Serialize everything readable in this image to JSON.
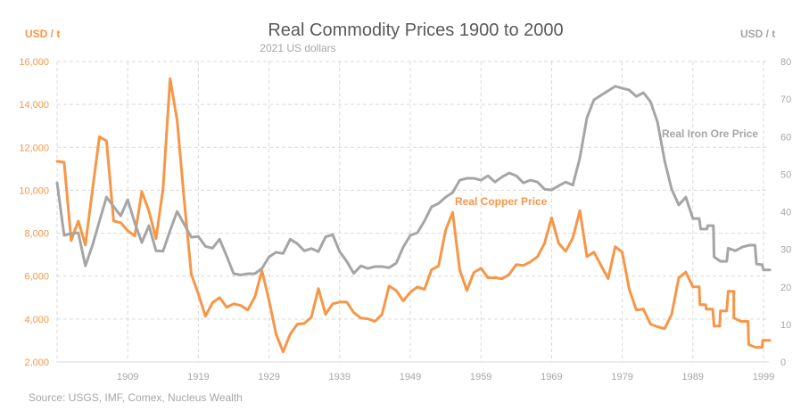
{
  "chart_data": {
    "type": "line",
    "title": "Real Commodity Prices 1900 to 2000",
    "subtitle": "2021 US dollars",
    "source": "Source: USGS, IMF, Comex, Nucleus Wealth",
    "xlabel": "",
    "x_ticks": [
      "1909",
      "1919",
      "1929",
      "1939",
      "1949",
      "1959",
      "1969",
      "1979",
      "1989",
      "1999"
    ],
    "x_range": [
      1899,
      2000
    ],
    "y_left": {
      "label": "USD / t",
      "range": [
        2000,
        16000
      ],
      "ticks": [
        "2,000",
        "4,000",
        "6,000",
        "8,000",
        "10,000",
        "12,000",
        "14,000",
        "16,000"
      ],
      "tick_values": [
        2000,
        4000,
        6000,
        8000,
        10000,
        12000,
        14000,
        16000
      ],
      "color": "#F79646"
    },
    "y_right": {
      "label": "USD / t",
      "range": [
        0,
        80
      ],
      "ticks": [
        "0",
        "10",
        "20",
        "30",
        "40",
        "50",
        "60",
        "70",
        "80"
      ],
      "tick_values": [
        0,
        10,
        20,
        30,
        40,
        50,
        60,
        70,
        80
      ],
      "color": "#A6A6A6"
    },
    "grid": true,
    "series": [
      {
        "name": "Real Copper Price",
        "axis": "left",
        "color": "#F79646",
        "label": "Real Copper Price",
        "points": [
          [
            1899,
            11350
          ],
          [
            1900,
            11300
          ],
          [
            1901,
            7660
          ],
          [
            1902,
            8570
          ],
          [
            1903,
            7450
          ],
          [
            1904,
            10000
          ],
          [
            1905,
            12500
          ],
          [
            1906,
            12300
          ],
          [
            1907,
            8570
          ],
          [
            1908,
            8490
          ],
          [
            1909,
            8120
          ],
          [
            1910,
            7870
          ],
          [
            1911,
            9940
          ],
          [
            1912,
            9030
          ],
          [
            1913,
            7740
          ],
          [
            1914,
            10070
          ],
          [
            1915,
            15200
          ],
          [
            1916,
            13260
          ],
          [
            1917,
            9500
          ],
          [
            1918,
            6080
          ],
          [
            1919,
            5170
          ],
          [
            1920,
            4130
          ],
          [
            1921,
            4760
          ],
          [
            1922,
            5000
          ],
          [
            1923,
            4550
          ],
          [
            1924,
            4710
          ],
          [
            1925,
            4630
          ],
          [
            1926,
            4420
          ],
          [
            1927,
            5040
          ],
          [
            1928,
            6250
          ],
          [
            1929,
            4880
          ],
          [
            1930,
            3300
          ],
          [
            1931,
            2470
          ],
          [
            1932,
            3300
          ],
          [
            1933,
            3760
          ],
          [
            1934,
            3800
          ],
          [
            1935,
            4090
          ],
          [
            1936,
            5420
          ],
          [
            1937,
            4220
          ],
          [
            1938,
            4710
          ],
          [
            1939,
            4790
          ],
          [
            1940,
            4790
          ],
          [
            1941,
            4300
          ],
          [
            1942,
            4050
          ],
          [
            1943,
            4010
          ],
          [
            1944,
            3890
          ],
          [
            1945,
            4220
          ],
          [
            1946,
            5540
          ],
          [
            1947,
            5330
          ],
          [
            1948,
            4840
          ],
          [
            1949,
            5250
          ],
          [
            1950,
            5500
          ],
          [
            1951,
            5380
          ],
          [
            1952,
            6290
          ],
          [
            1953,
            6480
          ],
          [
            1954,
            8140
          ],
          [
            1955,
            8970
          ],
          [
            1956,
            6290
          ],
          [
            1957,
            5330
          ],
          [
            1958,
            6170
          ],
          [
            1959,
            6370
          ],
          [
            1960,
            5920
          ],
          [
            1961,
            5920
          ],
          [
            1962,
            5880
          ],
          [
            1963,
            6080
          ],
          [
            1964,
            6540
          ],
          [
            1965,
            6500
          ],
          [
            1966,
            6660
          ],
          [
            1967,
            6910
          ],
          [
            1968,
            7530
          ],
          [
            1969,
            8720
          ],
          [
            1970,
            7530
          ],
          [
            1971,
            7160
          ],
          [
            1972,
            7780
          ],
          [
            1973,
            9050
          ],
          [
            1974,
            6910
          ],
          [
            1975,
            7120
          ],
          [
            1976,
            6500
          ],
          [
            1977,
            5880
          ],
          [
            1978,
            7370
          ],
          [
            1979,
            7120
          ],
          [
            1980,
            5380
          ],
          [
            1981,
            4420
          ],
          [
            1982,
            4460
          ],
          [
            1983,
            3760
          ],
          [
            1984,
            3640
          ],
          [
            1985,
            3550
          ],
          [
            1986,
            4220
          ],
          [
            1987,
            5920
          ],
          [
            1988,
            6190
          ],
          [
            1989,
            5500
          ],
          [
            1989.9,
            5500
          ],
          [
            1990,
            4670
          ],
          [
            1990.8,
            4670
          ],
          [
            1990.9,
            4460
          ],
          [
            1991.8,
            4460
          ],
          [
            1992,
            3670
          ],
          [
            1992.8,
            3670
          ],
          [
            1992.9,
            4380
          ],
          [
            1993.8,
            4380
          ],
          [
            1994,
            5290
          ],
          [
            1994.8,
            5290
          ],
          [
            1994.8,
            4050
          ],
          [
            1995.8,
            3890
          ],
          [
            1996.8,
            3890
          ],
          [
            1996.9,
            2810
          ],
          [
            1997.9,
            2680
          ],
          [
            1998.8,
            2680
          ],
          [
            1998.9,
            3010
          ],
          [
            1999.9,
            3010
          ]
        ]
      },
      {
        "name": "Real Iron Ore Price",
        "axis": "right",
        "color": "#A5A5A5",
        "label": "Real Iron Ore Price",
        "points": [
          [
            1899,
            47.7
          ],
          [
            1900,
            33.7
          ],
          [
            1901,
            34.2
          ],
          [
            1902,
            34.4
          ],
          [
            1903,
            25.6
          ],
          [
            1904,
            31.0
          ],
          [
            1905,
            37.5
          ],
          [
            1906,
            43.9
          ],
          [
            1907,
            41.4
          ],
          [
            1908,
            38.9
          ],
          [
            1909,
            43.2
          ],
          [
            1910,
            37.0
          ],
          [
            1911,
            31.8
          ],
          [
            1912,
            36.3
          ],
          [
            1913,
            29.6
          ],
          [
            1914,
            29.5
          ],
          [
            1915,
            35.0
          ],
          [
            1916,
            40.1
          ],
          [
            1917,
            36.6
          ],
          [
            1918,
            33.2
          ],
          [
            1919,
            33.4
          ],
          [
            1920,
            30.8
          ],
          [
            1921,
            30.3
          ],
          [
            1922,
            32.7
          ],
          [
            1923,
            28.2
          ],
          [
            1924,
            23.5
          ],
          [
            1925,
            23.2
          ],
          [
            1926,
            23.5
          ],
          [
            1927,
            23.5
          ],
          [
            1928,
            24.9
          ],
          [
            1929,
            28.0
          ],
          [
            1930,
            29.2
          ],
          [
            1931,
            28.9
          ],
          [
            1932,
            32.7
          ],
          [
            1933,
            31.5
          ],
          [
            1934,
            29.6
          ],
          [
            1935,
            30.2
          ],
          [
            1936,
            29.4
          ],
          [
            1937,
            33.3
          ],
          [
            1938,
            33.9
          ],
          [
            1939,
            29.4
          ],
          [
            1940,
            26.8
          ],
          [
            1941,
            23.6
          ],
          [
            1942,
            25.6
          ],
          [
            1943,
            24.9
          ],
          [
            1944,
            25.4
          ],
          [
            1945,
            25.4
          ],
          [
            1946,
            25.1
          ],
          [
            1947,
            26.3
          ],
          [
            1948,
            30.6
          ],
          [
            1949,
            33.7
          ],
          [
            1950,
            34.4
          ],
          [
            1951,
            37.5
          ],
          [
            1952,
            41.3
          ],
          [
            1953,
            42.2
          ],
          [
            1954,
            43.9
          ],
          [
            1955,
            45.1
          ],
          [
            1956,
            48.4
          ],
          [
            1957,
            48.9
          ],
          [
            1958,
            48.9
          ],
          [
            1959,
            48.4
          ],
          [
            1960,
            49.6
          ],
          [
            1961,
            47.9
          ],
          [
            1962,
            49.3
          ],
          [
            1963,
            50.3
          ],
          [
            1964,
            49.6
          ],
          [
            1965,
            47.7
          ],
          [
            1966,
            48.4
          ],
          [
            1967,
            47.9
          ],
          [
            1968,
            46.0
          ],
          [
            1969,
            45.8
          ],
          [
            1970,
            46.9
          ],
          [
            1971,
            47.9
          ],
          [
            1972,
            47.1
          ],
          [
            1973,
            54.3
          ],
          [
            1974,
            65.0
          ],
          [
            1975,
            69.8
          ],
          [
            1976,
            71.0
          ],
          [
            1977,
            72.2
          ],
          [
            1978,
            73.4
          ],
          [
            1979,
            72.9
          ],
          [
            1980,
            72.4
          ],
          [
            1981,
            70.7
          ],
          [
            1982,
            71.7
          ],
          [
            1983,
            69.3
          ],
          [
            1984,
            63.8
          ],
          [
            1985,
            53.6
          ],
          [
            1986,
            46.0
          ],
          [
            1987,
            41.8
          ],
          [
            1988,
            43.9
          ],
          [
            1989,
            38.2
          ],
          [
            1989.9,
            38.2
          ],
          [
            1990.1,
            35.4
          ],
          [
            1991,
            35.4
          ],
          [
            1991.1,
            36.3
          ],
          [
            1991.9,
            36.3
          ],
          [
            1992,
            28.0
          ],
          [
            1992.9,
            26.8
          ],
          [
            1993.8,
            26.8
          ],
          [
            1994,
            30.3
          ],
          [
            1995,
            29.6
          ],
          [
            1996,
            30.6
          ],
          [
            1997,
            31.1
          ],
          [
            1997.8,
            31.1
          ],
          [
            1998,
            26.1
          ],
          [
            1998.8,
            25.9
          ],
          [
            1999,
            24.5
          ],
          [
            1999.9,
            24.5
          ]
        ]
      }
    ],
    "legend": "inline-labels"
  }
}
